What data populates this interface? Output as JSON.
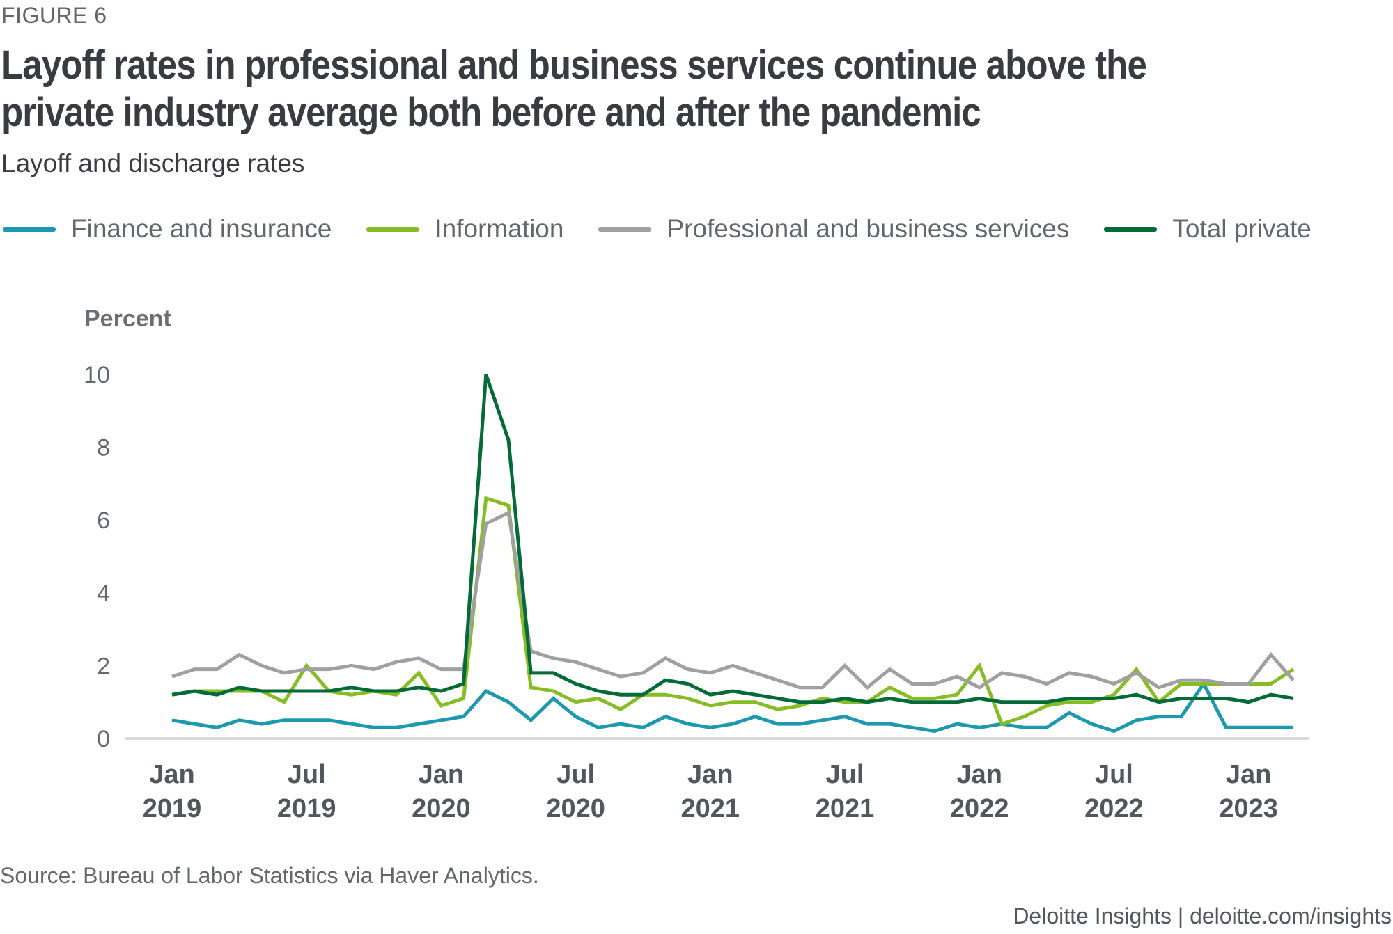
{
  "figure_label": "FIGURE 6",
  "title": "Layoff rates in professional and business services continue above the private industry average both before and after the pandemic",
  "subtitle": "Layoff and discharge rates",
  "source": "Source: Bureau of Labor Statistics via Haver Analytics.",
  "brand": "Deloitte Insights | deloitte.com/insights",
  "chart_data": {
    "type": "line",
    "title": "Layoff rates in professional and business services continue above the private industry average both before and after the pandemic",
    "subtitle": "Layoff and discharge rates",
    "ylabel": "Percent",
    "xlabel": "",
    "ylim": [
      0,
      10
    ],
    "yticks": [
      0,
      2,
      4,
      6,
      8,
      10
    ],
    "grid": false,
    "legend_position": "top-left",
    "x_start": "Jan 2019",
    "x_end": "Mar 2023",
    "x_frequency": "monthly",
    "xticks": [
      {
        "index": 0,
        "month": "Jan",
        "year": "2019"
      },
      {
        "index": 6,
        "month": "Jul",
        "year": "2019"
      },
      {
        "index": 12,
        "month": "Jan",
        "year": "2020"
      },
      {
        "index": 18,
        "month": "Jul",
        "year": "2020"
      },
      {
        "index": 24,
        "month": "Jan",
        "year": "2021"
      },
      {
        "index": 30,
        "month": "Jul",
        "year": "2021"
      },
      {
        "index": 36,
        "month": "Jan",
        "year": "2022"
      },
      {
        "index": 42,
        "month": "Jul",
        "year": "2022"
      },
      {
        "index": 48,
        "month": "Jan",
        "year": "2023"
      }
    ],
    "series": [
      {
        "name": "Finance and insurance",
        "color": "#1e98ae",
        "values": [
          0.5,
          0.4,
          0.3,
          0.5,
          0.4,
          0.5,
          0.5,
          0.5,
          0.4,
          0.3,
          0.3,
          0.4,
          0.5,
          0.6,
          1.3,
          1.0,
          0.5,
          1.1,
          0.6,
          0.3,
          0.4,
          0.3,
          0.6,
          0.4,
          0.3,
          0.4,
          0.6,
          0.4,
          0.4,
          0.5,
          0.6,
          0.4,
          0.4,
          0.3,
          0.2,
          0.4,
          0.3,
          0.4,
          0.3,
          0.3,
          0.7,
          0.4,
          0.2,
          0.5,
          0.6,
          0.6,
          1.5,
          0.3,
          0.3,
          0.3,
          0.3
        ]
      },
      {
        "name": "Information",
        "color": "#86bc25",
        "values": [
          1.2,
          1.3,
          1.3,
          1.3,
          1.3,
          1.0,
          2.0,
          1.3,
          1.2,
          1.3,
          1.2,
          1.8,
          0.9,
          1.1,
          6.6,
          6.4,
          1.4,
          1.3,
          1.0,
          1.1,
          0.8,
          1.2,
          1.2,
          1.1,
          0.9,
          1.0,
          1.0,
          0.8,
          0.9,
          1.1,
          1.0,
          1.0,
          1.4,
          1.1,
          1.1,
          1.2,
          2.0,
          0.4,
          0.6,
          0.9,
          1.0,
          1.0,
          1.2,
          1.9,
          1.0,
          1.5,
          1.5,
          1.5,
          1.5,
          1.5,
          1.9
        ]
      },
      {
        "name": "Professional and business services",
        "color": "#a0a0a2",
        "values": [
          1.7,
          1.9,
          1.9,
          2.3,
          2.0,
          1.8,
          1.9,
          1.9,
          2.0,
          1.9,
          2.1,
          2.2,
          1.9,
          1.9,
          5.9,
          6.2,
          2.4,
          2.2,
          2.1,
          1.9,
          1.7,
          1.8,
          2.2,
          1.9,
          1.8,
          2.0,
          1.8,
          1.6,
          1.4,
          1.4,
          2.0,
          1.4,
          1.9,
          1.5,
          1.5,
          1.7,
          1.4,
          1.8,
          1.7,
          1.5,
          1.8,
          1.7,
          1.5,
          1.8,
          1.4,
          1.6,
          1.6,
          1.5,
          1.5,
          2.3,
          1.6
        ]
      },
      {
        "name": "Total private",
        "color": "#046a38",
        "values": [
          1.2,
          1.3,
          1.2,
          1.4,
          1.3,
          1.3,
          1.3,
          1.3,
          1.4,
          1.3,
          1.3,
          1.4,
          1.3,
          1.5,
          10.0,
          8.2,
          1.8,
          1.8,
          1.5,
          1.3,
          1.2,
          1.2,
          1.6,
          1.5,
          1.2,
          1.3,
          1.2,
          1.1,
          1.0,
          1.0,
          1.1,
          1.0,
          1.1,
          1.0,
          1.0,
          1.0,
          1.1,
          1.0,
          1.0,
          1.0,
          1.1,
          1.1,
          1.1,
          1.2,
          1.0,
          1.1,
          1.1,
          1.1,
          1.0,
          1.2,
          1.1
        ]
      }
    ]
  }
}
